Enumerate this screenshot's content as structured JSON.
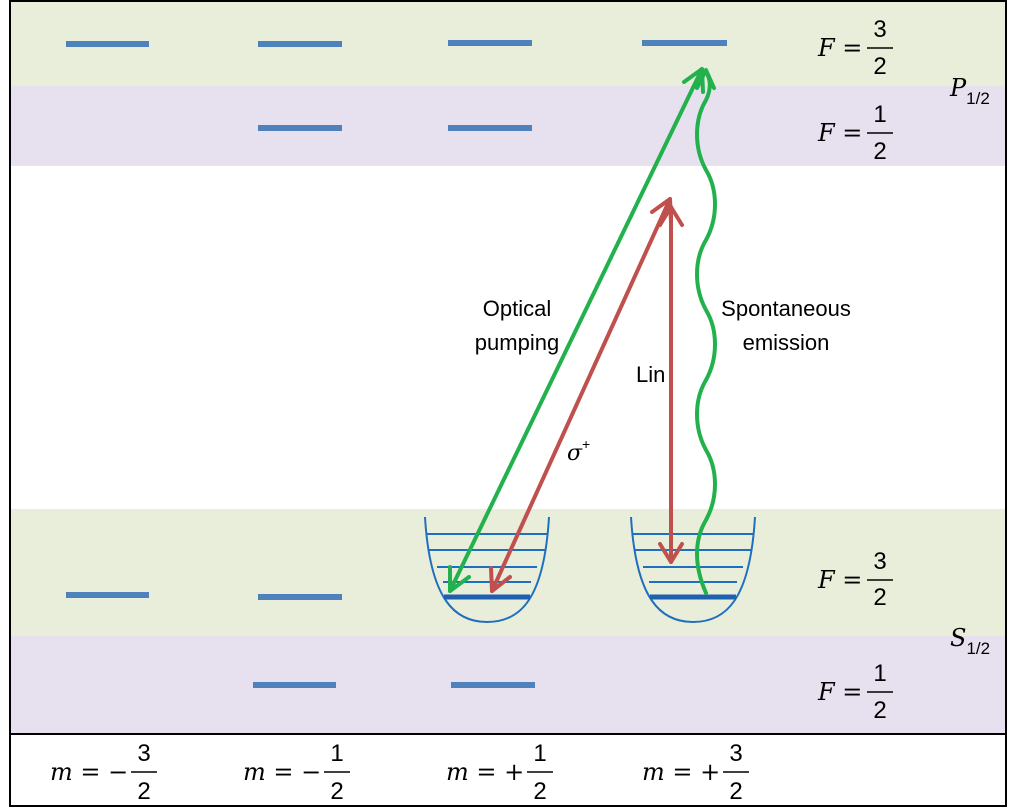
{
  "colors": {
    "green_band": "#E9EEDB",
    "purple_band": "#E6E0EF",
    "level": "#4F81BD",
    "trap": "#1F6FBF",
    "green_arrow": "#22B14C",
    "red_arrow": "#C0504D"
  },
  "manifolds": {
    "excited": {
      "label_main": "P",
      "label_sub": "1/2"
    },
    "ground": {
      "label_main": "S",
      "label_sub": "1/2"
    }
  },
  "F_labels": [
    {
      "lhs": "F =",
      "num": "3",
      "den": "2"
    },
    {
      "lhs": "F =",
      "num": "1",
      "den": "2"
    },
    {
      "lhs": "F =",
      "num": "3",
      "den": "2"
    },
    {
      "lhs": "F =",
      "num": "1",
      "den": "2"
    }
  ],
  "m_labels": [
    {
      "lhs": "m = −",
      "num": "3",
      "den": "2"
    },
    {
      "lhs": "m = −",
      "num": "1",
      "den": "2"
    },
    {
      "lhs": "m = +",
      "num": "1",
      "den": "2"
    },
    {
      "lhs": "m = +",
      "num": "3",
      "den": "2"
    }
  ],
  "transitions": {
    "optical_pumping": [
      "Optical",
      "pumping"
    ],
    "spontaneous_emission": [
      "Spontaneous",
      "emission"
    ],
    "lin": "Lin",
    "sigma": {
      "symbol": "σ",
      "sup": "+"
    }
  }
}
